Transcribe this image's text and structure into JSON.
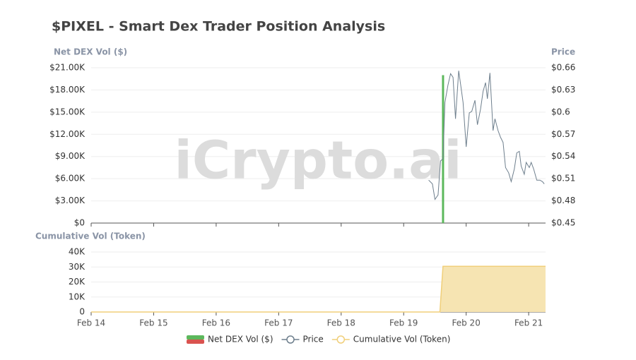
{
  "chart_data": [
    {
      "type": "combo",
      "title": "$PIXEL - Smart Dex Trader Position Analysis",
      "watermark": "iCrypto.ai",
      "ylabel": "Net DEX Vol ($)",
      "y2label": "Price",
      "xlim": [
        14,
        21.27
      ],
      "xticks": [
        14,
        15,
        16,
        17,
        18,
        19,
        20,
        21
      ],
      "ylim": [
        0,
        21000
      ],
      "yticks": [
        {
          "value": 0,
          "label": "$0"
        },
        {
          "value": 3000,
          "label": "$3.00K"
        },
        {
          "value": 6000,
          "label": "$6.00K"
        },
        {
          "value": 9000,
          "label": "$9.00K"
        },
        {
          "value": 12000,
          "label": "$12.00K"
        },
        {
          "value": 15000,
          "label": "$15.00K"
        },
        {
          "value": 18000,
          "label": "$18.00K"
        },
        {
          "value": 21000,
          "label": "$21.00K"
        }
      ],
      "y2lim": [
        0.45,
        0.66
      ],
      "y2ticks": [
        {
          "value": 0.45,
          "label": "$0.45"
        },
        {
          "value": 0.48,
          "label": "$0.48"
        },
        {
          "value": 0.51,
          "label": "$0.51"
        },
        {
          "value": 0.54,
          "label": "$0.54"
        },
        {
          "value": 0.57,
          "label": "$0.57"
        },
        {
          "value": 0.6,
          "label": "$0.6"
        },
        {
          "value": 0.63,
          "label": "$0.63"
        },
        {
          "value": 0.66,
          "label": "$0.66"
        }
      ],
      "grid": true,
      "series": [
        {
          "name": "Net DEX Vol ($)",
          "type": "bar",
          "color": "#5cb85c",
          "negative_color": "#d9534f",
          "x": [
            19.63
          ],
          "values": [
            20000
          ]
        },
        {
          "name": "Price",
          "type": "line",
          "axis": "y2",
          "color": "#6e7f8d",
          "x": [
            19.4,
            19.46,
            19.5,
            19.55,
            19.59,
            19.63,
            19.66,
            19.71,
            19.75,
            19.79,
            19.83,
            19.88,
            19.92,
            19.95,
            20.0,
            20.05,
            20.09,
            20.14,
            20.18,
            20.23,
            20.27,
            20.31,
            20.34,
            20.38,
            20.43,
            20.46,
            20.51,
            20.55,
            20.59,
            20.63,
            20.68,
            20.72,
            20.77,
            20.81,
            20.85,
            20.88,
            20.93,
            20.96,
            21.01,
            21.04,
            21.08,
            21.13,
            21.18,
            21.22,
            21.25
          ],
          "values": [
            0.508,
            0.503,
            0.482,
            0.488,
            0.534,
            0.537,
            0.613,
            0.637,
            0.652,
            0.647,
            0.591,
            0.656,
            0.632,
            0.613,
            0.553,
            0.599,
            0.601,
            0.616,
            0.583,
            0.604,
            0.628,
            0.64,
            0.618,
            0.653,
            0.575,
            0.591,
            0.575,
            0.566,
            0.559,
            0.525,
            0.518,
            0.506,
            0.523,
            0.545,
            0.547,
            0.527,
            0.516,
            0.532,
            0.525,
            0.532,
            0.523,
            0.508,
            0.508,
            0.506,
            0.503
          ]
        }
      ]
    },
    {
      "type": "area",
      "ylabel": "Cumulative Vol (Token)",
      "xlim": [
        14,
        21.27
      ],
      "xticks": [
        {
          "value": 14,
          "label": "Feb 14"
        },
        {
          "value": 15,
          "label": "Feb 15"
        },
        {
          "value": 16,
          "label": "Feb 16"
        },
        {
          "value": 17,
          "label": "Feb 17"
        },
        {
          "value": 18,
          "label": "Feb 18"
        },
        {
          "value": 19,
          "label": "Feb 19"
        },
        {
          "value": 20,
          "label": "Feb 20"
        },
        {
          "value": 21,
          "label": "Feb 21"
        }
      ],
      "ylim": [
        0,
        40000
      ],
      "yticks": [
        0,
        {
          "value": 10000,
          "label": "10K"
        },
        {
          "value": 20000,
          "label": "20K"
        },
        {
          "value": 30000,
          "label": "30K"
        },
        {
          "value": 40000,
          "label": "40K"
        }
      ],
      "grid": true,
      "series": [
        {
          "name": "Cumulative Vol (Token)",
          "color": "#f0cf7a",
          "fill": "#f6e4b2",
          "x": [
            14,
            19.58,
            19.63,
            21.27
          ],
          "values": [
            0,
            0,
            30500,
            30500
          ]
        }
      ]
    }
  ]
}
